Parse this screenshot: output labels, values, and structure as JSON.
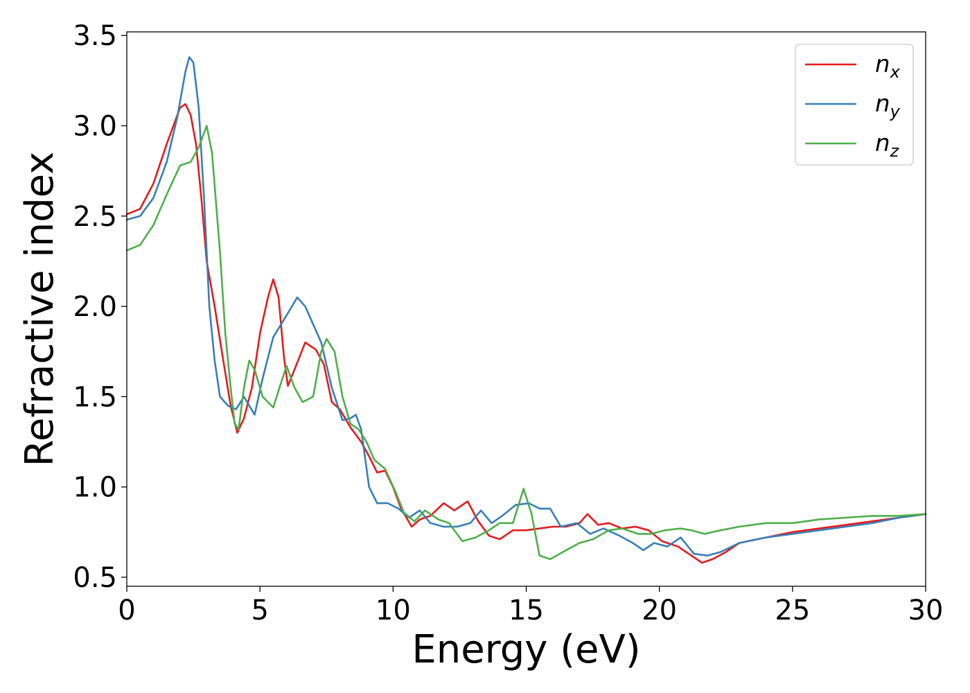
{
  "chart_data": {
    "type": "line",
    "title": "",
    "xlabel": "Energy (eV)",
    "ylabel": "Refractive index",
    "xlim": [
      0,
      30
    ],
    "ylim": [
      0.45,
      3.52
    ],
    "xticks": [
      0,
      5,
      10,
      15,
      20,
      25,
      30
    ],
    "xtick_labels": [
      "0",
      "5",
      "10",
      "15",
      "20",
      "25",
      "30"
    ],
    "yticks": [
      0.5,
      1.0,
      1.5,
      2.0,
      2.5,
      3.0,
      3.5
    ],
    "ytick_labels": [
      "0.5",
      "1.0",
      "1.5",
      "2.0",
      "2.5",
      "3.0",
      "3.5"
    ],
    "grid": false,
    "legend_position": "top-right",
    "series": [
      {
        "name": "n",
        "subscript": "x",
        "color": "#e41a1c",
        "points": [
          [
            0,
            2.51
          ],
          [
            0.5,
            2.54
          ],
          [
            1,
            2.68
          ],
          [
            1.5,
            2.9
          ],
          [
            2,
            3.1
          ],
          [
            2.2,
            3.12
          ],
          [
            2.4,
            3.06
          ],
          [
            2.6,
            2.9
          ],
          [
            2.8,
            2.6
          ],
          [
            3,
            2.25
          ],
          [
            3.3,
            2.0
          ],
          [
            3.6,
            1.72
          ],
          [
            3.9,
            1.45
          ],
          [
            4.15,
            1.3
          ],
          [
            4.4,
            1.38
          ],
          [
            4.7,
            1.55
          ],
          [
            5.0,
            1.85
          ],
          [
            5.3,
            2.05
          ],
          [
            5.5,
            2.15
          ],
          [
            5.7,
            2.05
          ],
          [
            5.9,
            1.72
          ],
          [
            6.05,
            1.56
          ],
          [
            6.3,
            1.65
          ],
          [
            6.7,
            1.8
          ],
          [
            7.1,
            1.76
          ],
          [
            7.4,
            1.68
          ],
          [
            7.7,
            1.47
          ],
          [
            8.0,
            1.43
          ],
          [
            8.4,
            1.33
          ],
          [
            8.8,
            1.25
          ],
          [
            9.1,
            1.17
          ],
          [
            9.4,
            1.08
          ],
          [
            9.7,
            1.09
          ],
          [
            10.0,
            1.0
          ],
          [
            10.3,
            0.88
          ],
          [
            10.7,
            0.78
          ],
          [
            11.0,
            0.82
          ],
          [
            11.4,
            0.84
          ],
          [
            11.9,
            0.91
          ],
          [
            12.3,
            0.87
          ],
          [
            12.8,
            0.92
          ],
          [
            13.2,
            0.81
          ],
          [
            13.6,
            0.73
          ],
          [
            14.0,
            0.71
          ],
          [
            14.5,
            0.76
          ],
          [
            15.0,
            0.76
          ],
          [
            15.5,
            0.77
          ],
          [
            16.0,
            0.78
          ],
          [
            16.5,
            0.78
          ],
          [
            17.0,
            0.8
          ],
          [
            17.3,
            0.85
          ],
          [
            17.7,
            0.79
          ],
          [
            18.1,
            0.8
          ],
          [
            18.6,
            0.77
          ],
          [
            19.1,
            0.78
          ],
          [
            19.6,
            0.76
          ],
          [
            20.1,
            0.7
          ],
          [
            20.7,
            0.67
          ],
          [
            21.2,
            0.62
          ],
          [
            21.6,
            0.58
          ],
          [
            22.0,
            0.6
          ],
          [
            22.5,
            0.64
          ],
          [
            23.0,
            0.69
          ],
          [
            24.0,
            0.72
          ],
          [
            25.0,
            0.75
          ],
          [
            26.0,
            0.77
          ],
          [
            27.0,
            0.79
          ],
          [
            28.0,
            0.81
          ],
          [
            29.0,
            0.83
          ],
          [
            30.0,
            0.85
          ]
        ]
      },
      {
        "name": "n",
        "subscript": "y",
        "color": "#377eb8",
        "points": [
          [
            0,
            2.48
          ],
          [
            0.5,
            2.5
          ],
          [
            1,
            2.6
          ],
          [
            1.5,
            2.8
          ],
          [
            1.9,
            3.05
          ],
          [
            2.2,
            3.3
          ],
          [
            2.35,
            3.38
          ],
          [
            2.5,
            3.35
          ],
          [
            2.7,
            3.1
          ],
          [
            2.9,
            2.6
          ],
          [
            3.1,
            2.0
          ],
          [
            3.3,
            1.7
          ],
          [
            3.5,
            1.5
          ],
          [
            3.8,
            1.45
          ],
          [
            4.1,
            1.43
          ],
          [
            4.4,
            1.5
          ],
          [
            4.6,
            1.45
          ],
          [
            4.8,
            1.4
          ],
          [
            5.1,
            1.6
          ],
          [
            5.5,
            1.83
          ],
          [
            6.0,
            1.95
          ],
          [
            6.4,
            2.05
          ],
          [
            6.7,
            2.0
          ],
          [
            7.0,
            1.9
          ],
          [
            7.3,
            1.8
          ],
          [
            7.7,
            1.55
          ],
          [
            8.1,
            1.37
          ],
          [
            8.4,
            1.38
          ],
          [
            8.6,
            1.4
          ],
          [
            8.8,
            1.32
          ],
          [
            9.1,
            1.0
          ],
          [
            9.4,
            0.91
          ],
          [
            9.8,
            0.91
          ],
          [
            10.2,
            0.88
          ],
          [
            10.6,
            0.83
          ],
          [
            11.0,
            0.87
          ],
          [
            11.4,
            0.8
          ],
          [
            11.9,
            0.78
          ],
          [
            12.4,
            0.78
          ],
          [
            12.9,
            0.8
          ],
          [
            13.3,
            0.87
          ],
          [
            13.7,
            0.8
          ],
          [
            14.1,
            0.84
          ],
          [
            14.6,
            0.9
          ],
          [
            15.1,
            0.91
          ],
          [
            15.5,
            0.88
          ],
          [
            15.9,
            0.88
          ],
          [
            16.3,
            0.78
          ],
          [
            16.9,
            0.8
          ],
          [
            17.4,
            0.74
          ],
          [
            17.9,
            0.77
          ],
          [
            18.5,
            0.73
          ],
          [
            19.0,
            0.69
          ],
          [
            19.4,
            0.65
          ],
          [
            19.8,
            0.69
          ],
          [
            20.3,
            0.67
          ],
          [
            20.8,
            0.72
          ],
          [
            21.3,
            0.63
          ],
          [
            21.8,
            0.62
          ],
          [
            22.3,
            0.64
          ],
          [
            23.0,
            0.69
          ],
          [
            24.0,
            0.72
          ],
          [
            25.0,
            0.74
          ],
          [
            26.0,
            0.76
          ],
          [
            27.0,
            0.78
          ],
          [
            28.0,
            0.8
          ],
          [
            29.0,
            0.83
          ],
          [
            30.0,
            0.85
          ]
        ]
      },
      {
        "name": "n",
        "subscript": "z",
        "color": "#4daf4a",
        "points": [
          [
            0,
            2.31
          ],
          [
            0.5,
            2.34
          ],
          [
            1,
            2.45
          ],
          [
            1.5,
            2.62
          ],
          [
            2,
            2.78
          ],
          [
            2.4,
            2.8
          ],
          [
            2.7,
            2.88
          ],
          [
            3.0,
            3.0
          ],
          [
            3.2,
            2.85
          ],
          [
            3.5,
            2.3
          ],
          [
            3.7,
            1.85
          ],
          [
            3.9,
            1.55
          ],
          [
            4.05,
            1.35
          ],
          [
            4.2,
            1.32
          ],
          [
            4.4,
            1.55
          ],
          [
            4.6,
            1.7
          ],
          [
            4.8,
            1.65
          ],
          [
            5.1,
            1.5
          ],
          [
            5.5,
            1.44
          ],
          [
            5.8,
            1.58
          ],
          [
            6.0,
            1.67
          ],
          [
            6.3,
            1.55
          ],
          [
            6.6,
            1.47
          ],
          [
            7.0,
            1.5
          ],
          [
            7.3,
            1.75
          ],
          [
            7.5,
            1.82
          ],
          [
            7.8,
            1.75
          ],
          [
            8.1,
            1.5
          ],
          [
            8.4,
            1.35
          ],
          [
            8.7,
            1.32
          ],
          [
            9.0,
            1.25
          ],
          [
            9.3,
            1.15
          ],
          [
            9.7,
            1.1
          ],
          [
            10.1,
            0.97
          ],
          [
            10.4,
            0.86
          ],
          [
            10.8,
            0.81
          ],
          [
            11.2,
            0.87
          ],
          [
            11.7,
            0.82
          ],
          [
            12.1,
            0.8
          ],
          [
            12.6,
            0.7
          ],
          [
            13.1,
            0.72
          ],
          [
            13.6,
            0.76
          ],
          [
            14.0,
            0.8
          ],
          [
            14.5,
            0.8
          ],
          [
            14.9,
            0.99
          ],
          [
            15.2,
            0.85
          ],
          [
            15.5,
            0.62
          ],
          [
            15.9,
            0.6
          ],
          [
            16.5,
            0.65
          ],
          [
            17.0,
            0.69
          ],
          [
            17.5,
            0.71
          ],
          [
            18.1,
            0.76
          ],
          [
            18.6,
            0.77
          ],
          [
            19.2,
            0.74
          ],
          [
            19.7,
            0.74
          ],
          [
            20.2,
            0.76
          ],
          [
            20.8,
            0.77
          ],
          [
            21.2,
            0.76
          ],
          [
            21.7,
            0.74
          ],
          [
            22.3,
            0.76
          ],
          [
            23.0,
            0.78
          ],
          [
            24.0,
            0.8
          ],
          [
            25.0,
            0.8
          ],
          [
            26.0,
            0.82
          ],
          [
            27.0,
            0.83
          ],
          [
            28.0,
            0.84
          ],
          [
            29.0,
            0.84
          ],
          [
            30.0,
            0.85
          ]
        ]
      }
    ]
  }
}
